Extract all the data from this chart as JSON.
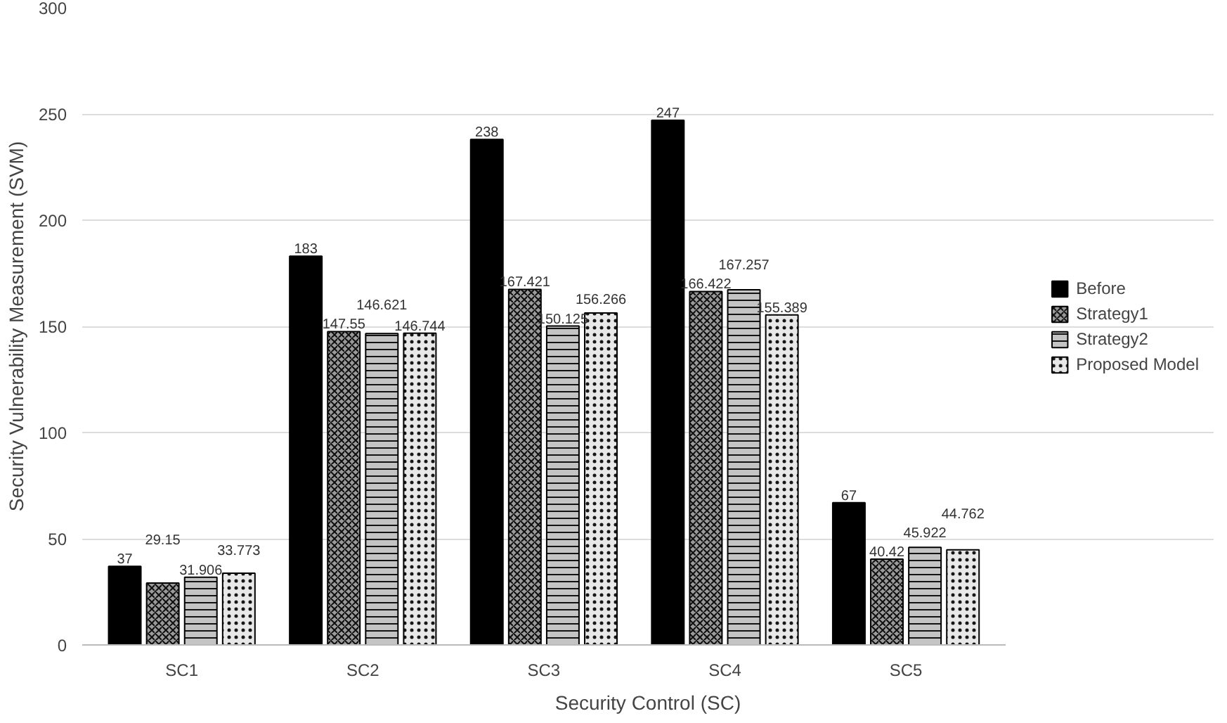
{
  "chart_data": {
    "type": "bar",
    "xlabel": "Security Control (SC)",
    "ylabel": "Security Vulnerability Measurement (SVM)",
    "categories": [
      "SC1",
      "SC2",
      "SC3",
      "SC4",
      "SC5"
    ],
    "series": [
      {
        "name": "Before",
        "color": "#000000",
        "values": [
          37,
          183,
          238,
          247,
          67
        ]
      },
      {
        "name": "Strategy1",
        "color": "#9a9a9a",
        "values": [
          29.15,
          147.55,
          167.421,
          166.422,
          40.42
        ]
      },
      {
        "name": "Strategy2",
        "color": "#c4c4c4",
        "values": [
          31.906,
          146.621,
          150.125,
          167.257,
          45.922
        ]
      },
      {
        "name": "Proposed Model",
        "color": "#e8e8e8",
        "values": [
          33.773,
          146.744,
          156.266,
          155.389,
          44.762
        ]
      }
    ],
    "ylim": [
      0,
      300
    ],
    "yticks": [
      0,
      50,
      100,
      150,
      200,
      250,
      300
    ],
    "grid": "y",
    "legend": "right",
    "data_labels": true
  }
}
